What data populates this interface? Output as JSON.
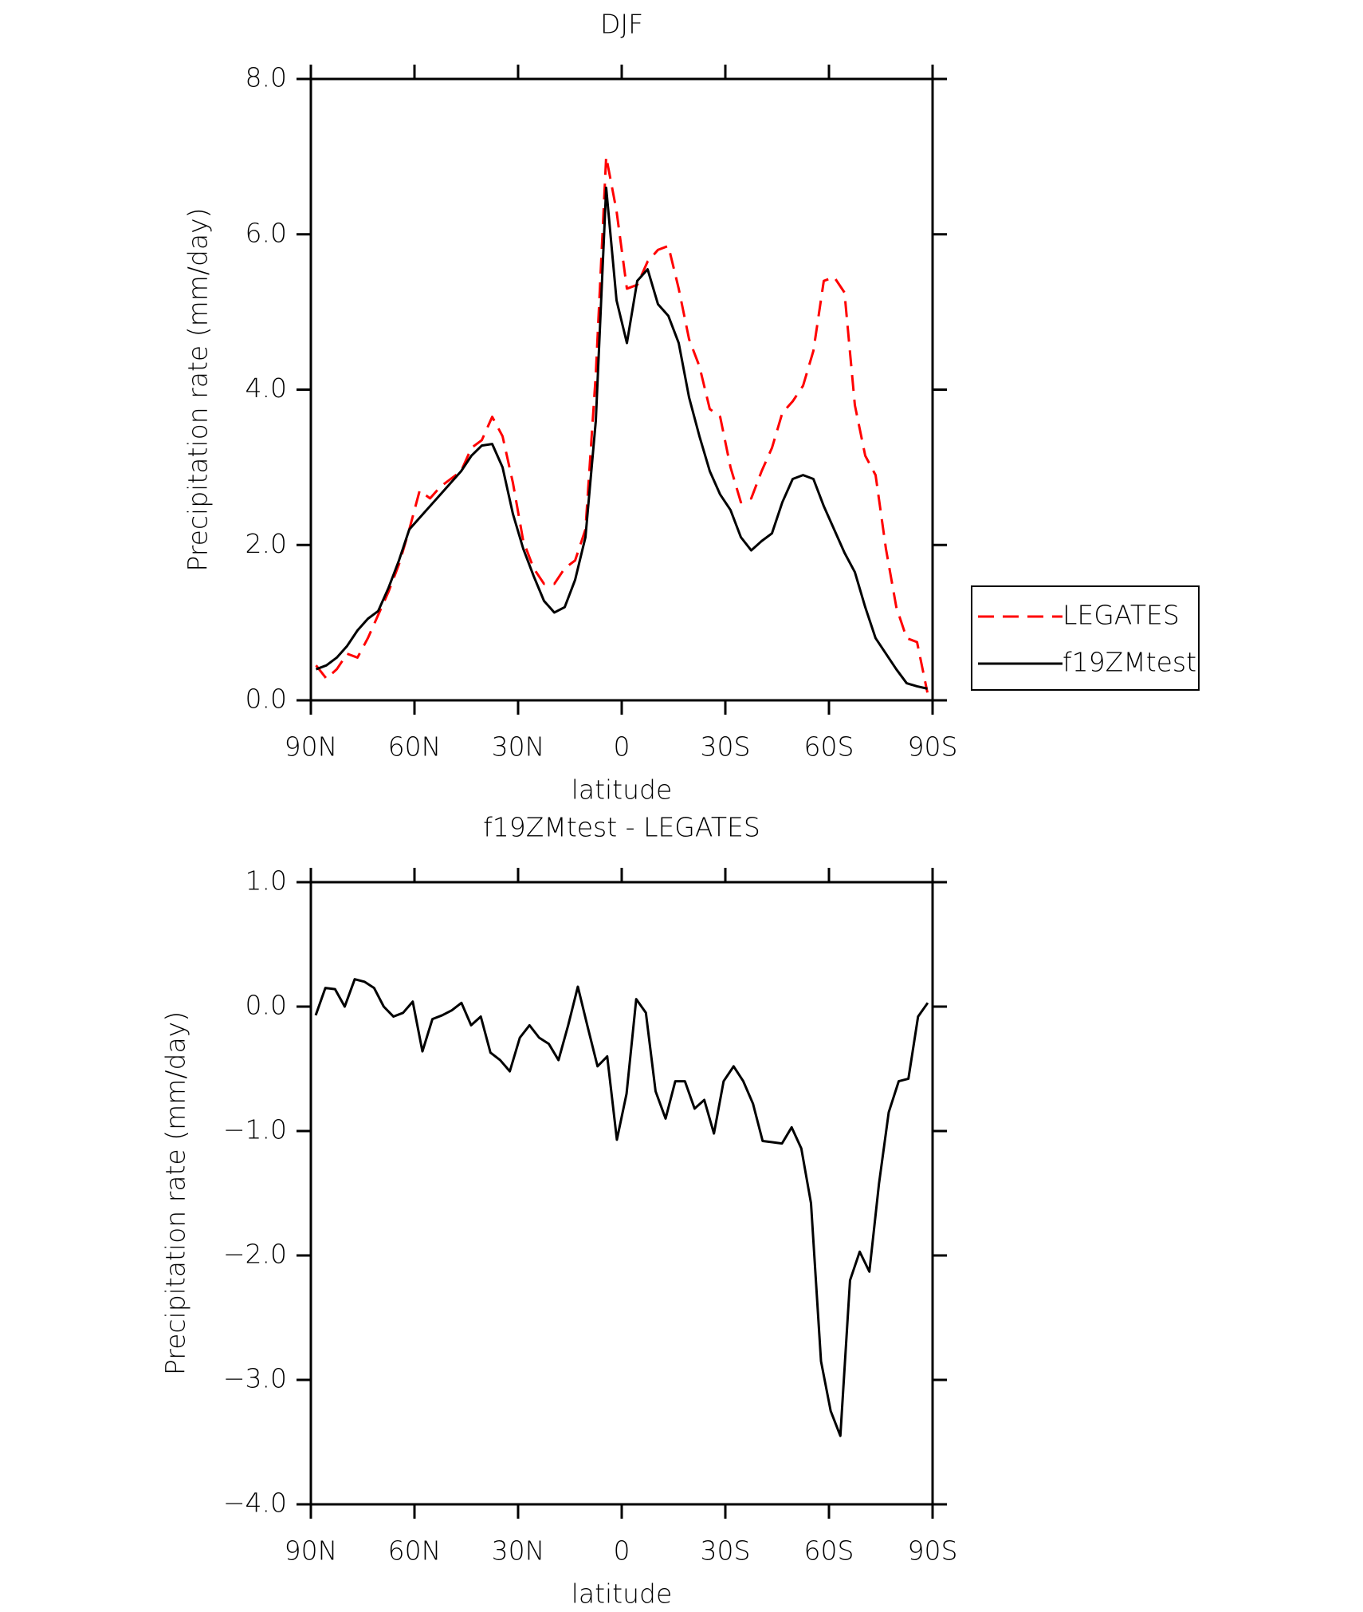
{
  "chart_data": [
    {
      "type": "line",
      "title": "DJF",
      "xlabel": "latitude",
      "ylabel": "Precipitation rate (mm/day)",
      "x": [
        88.5,
        85.5,
        82.5,
        79.5,
        76.5,
        73.5,
        70.5,
        67.5,
        64.5,
        61.5,
        58.5,
        55.5,
        52.5,
        49.5,
        46.5,
        43.5,
        40.5,
        37.5,
        34.5,
        31.5,
        28.5,
        25.5,
        22.5,
        19.5,
        16.5,
        13.5,
        10.5,
        7.5,
        4.5,
        1.5,
        -1.5,
        -4.5,
        -7.5,
        -10.5,
        -13.5,
        -16.5,
        -19.5,
        -22.5,
        -25.5,
        -28.5,
        -31.5,
        -34.5,
        -37.5,
        -40.5,
        -43.5,
        -46.5,
        -49.5,
        -52.5,
        -55.5,
        -58.5,
        -61.5,
        -64.5,
        -67.5,
        -70.5,
        -73.5,
        -76.5,
        -79.5,
        -82.5,
        -85.5,
        -88.5
      ],
      "series": [
        {
          "name": "LEGATES",
          "color": "#ff0000",
          "linestyle": "dashed",
          "values": [
            0.45,
            0.28,
            0.4,
            0.6,
            0.55,
            0.8,
            1.1,
            1.4,
            1.75,
            2.2,
            2.7,
            2.6,
            2.75,
            2.85,
            2.95,
            3.25,
            3.35,
            3.65,
            3.4,
            2.8,
            2.05,
            1.7,
            1.5,
            1.5,
            1.7,
            1.8,
            2.2,
            4.2,
            7.0,
            6.3,
            5.3,
            5.35,
            5.65,
            5.8,
            5.85,
            5.3,
            4.65,
            4.3,
            3.75,
            3.65,
            3.0,
            2.55,
            2.6,
            2.95,
            3.25,
            3.7,
            3.85,
            4.05,
            4.5,
            5.4,
            5.45,
            5.25,
            3.8,
            3.15,
            2.9,
            1.95,
            1.2,
            0.8,
            0.75,
            0.1
          ]
        },
        {
          "name": "f19ZMtest",
          "color": "#000000",
          "linestyle": "solid",
          "values": [
            0.4,
            0.45,
            0.55,
            0.7,
            0.9,
            1.05,
            1.15,
            1.45,
            1.8,
            2.2,
            2.35,
            2.5,
            2.65,
            2.8,
            2.95,
            3.15,
            3.28,
            3.3,
            3.0,
            2.4,
            1.95,
            1.6,
            1.28,
            1.13,
            1.2,
            1.55,
            2.1,
            3.6,
            6.6,
            5.15,
            4.6,
            5.4,
            5.55,
            5.1,
            4.95,
            4.6,
            3.9,
            3.4,
            2.95,
            2.65,
            2.45,
            2.1,
            1.93,
            2.05,
            2.15,
            2.55,
            2.85,
            2.9,
            2.85,
            2.5,
            2.2,
            1.9,
            1.65,
            1.2,
            0.8,
            0.6,
            0.4,
            0.22,
            0.18,
            0.15
          ]
        }
      ],
      "xlim": [
        90,
        -90
      ],
      "xticks": [
        {
          "value": 90,
          "label": "90N"
        },
        {
          "value": 60,
          "label": "60N"
        },
        {
          "value": 30,
          "label": "30N"
        },
        0,
        {
          "value": -30,
          "label": "30S"
        },
        {
          "value": -60,
          "label": "60S"
        },
        {
          "value": -90,
          "label": "90S"
        }
      ],
      "ylim": [
        0,
        8
      ],
      "yticks": [
        {
          "value": 0,
          "label": "0.0"
        },
        {
          "value": 2,
          "label": "2.0"
        },
        {
          "value": 4,
          "label": "4.0"
        },
        {
          "value": 6,
          "label": "6.0"
        },
        {
          "value": 8,
          "label": "8.0"
        }
      ],
      "legend": "right"
    },
    {
      "type": "line",
      "title": "f19ZMtest - LEGATES",
      "xlabel": "latitude",
      "ylabel": "Precipitation rate (mm/day)",
      "x": [
        88.6,
        85.8,
        83.0,
        80.2,
        77.3,
        74.5,
        71.7,
        68.9,
        66.1,
        63.3,
        60.5,
        57.7,
        54.8,
        52.0,
        49.2,
        46.4,
        43.6,
        40.8,
        38.0,
        35.2,
        32.4,
        29.5,
        26.7,
        23.9,
        21.1,
        18.3,
        15.5,
        12.7,
        9.8,
        7.0,
        4.2,
        1.4,
        -1.4,
        -4.2,
        -7.0,
        -9.8,
        -12.7,
        -15.5,
        -18.3,
        -21.1,
        -23.9,
        -26.7,
        -29.5,
        -32.4,
        -35.2,
        -38.0,
        -40.8,
        -43.6,
        -46.4,
        -49.2,
        -52.0,
        -54.8,
        -57.7,
        -60.5,
        -63.3,
        -66.1,
        -68.9,
        -71.7,
        -74.5,
        -77.3,
        -80.2,
        -83.0,
        -85.8,
        -88.6
      ],
      "series": [
        {
          "color": "#000000",
          "linestyle": "solid",
          "values": [
            -0.07,
            0.15,
            0.14,
            0.0,
            0.22,
            0.2,
            0.15,
            0.0,
            -0.08,
            -0.05,
            0.04,
            -0.36,
            -0.1,
            -0.07,
            -0.03,
            0.03,
            -0.15,
            -0.08,
            -0.37,
            -0.43,
            -0.52,
            -0.25,
            -0.15,
            -0.25,
            -0.3,
            -0.43,
            -0.15,
            0.16,
            -0.17,
            -0.48,
            -0.4,
            -1.07,
            -0.7,
            0.06,
            -0.05,
            -0.68,
            -0.9,
            -0.6,
            -0.6,
            -0.82,
            -0.75,
            -1.02,
            -0.6,
            -0.48,
            -0.6,
            -0.78,
            -1.08,
            -1.09,
            -1.1,
            -0.97,
            -1.14,
            -1.58,
            -2.85,
            -3.25,
            -3.45,
            -2.2,
            -1.97,
            -2.13,
            -1.42,
            -0.85,
            -0.6,
            -0.58,
            -0.08,
            0.03
          ]
        }
      ],
      "xlim": [
        90,
        -90
      ],
      "xticks": [
        {
          "value": 90,
          "label": "90N"
        },
        {
          "value": 60,
          "label": "60N"
        },
        {
          "value": 30,
          "label": "30N"
        },
        0,
        {
          "value": -30,
          "label": "30S"
        },
        {
          "value": -60,
          "label": "60S"
        },
        {
          "value": -90,
          "label": "90S"
        }
      ],
      "ylim": [
        -4,
        1
      ],
      "yticks": [
        {
          "value": -4,
          "label": "−4.0"
        },
        {
          "value": -3,
          "label": "−3.0"
        },
        {
          "value": -2,
          "label": "−2.0"
        },
        {
          "value": -1,
          "label": "−1.0"
        },
        {
          "value": 0,
          "label": "0.0"
        },
        {
          "value": 1,
          "label": "1.0"
        }
      ]
    }
  ]
}
